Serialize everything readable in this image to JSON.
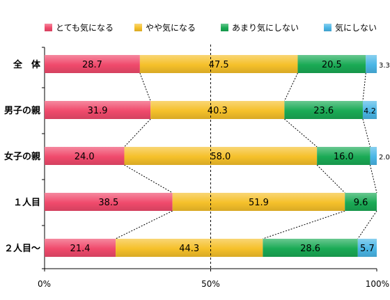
{
  "chart_data": {
    "type": "bar",
    "orientation": "horizontal",
    "stacked": "percent",
    "categories": [
      "全　体",
      "男子の親",
      "女子の親",
      "１人目",
      "２人目～"
    ],
    "series": [
      {
        "name": "とても気になる",
        "values": [
          28.7,
          31.9,
          24.0,
          38.5,
          21.4
        ],
        "color": "#f04a6c"
      },
      {
        "name": "やや気になる",
        "values": [
          47.5,
          40.3,
          58.0,
          51.9,
          44.3
        ],
        "color": "#f5c02a"
      },
      {
        "name": "あまり気にしない",
        "values": [
          20.5,
          23.6,
          16.0,
          9.6,
          28.6
        ],
        "color": "#1aaa55"
      },
      {
        "name": "気にしない",
        "values": [
          3.3,
          4.2,
          2.0,
          null,
          5.7
        ],
        "color": "#4ab6e6"
      }
    ],
    "value_labels": [
      [
        "28.7",
        "47.5",
        "20.5",
        "3.3"
      ],
      [
        "31.9",
        "40.3",
        "23.6",
        "4.2"
      ],
      [
        "24.0",
        "58.0",
        "16.0",
        "2.0"
      ],
      [
        "38.5",
        "51.9",
        "9.6",
        ""
      ],
      [
        "21.4",
        "44.3",
        "28.6",
        "5.7"
      ]
    ],
    "x_ticks": [
      "0%",
      "50%",
      "100%"
    ],
    "xlim": [
      0,
      100
    ],
    "legend_position": "top",
    "midline": 50
  }
}
